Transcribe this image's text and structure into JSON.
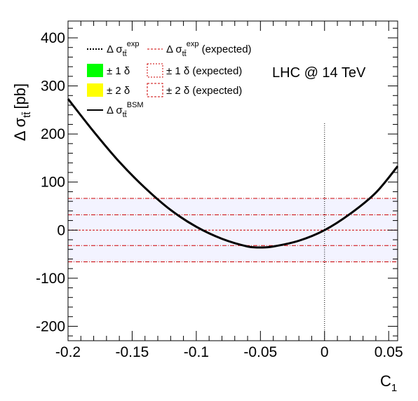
{
  "chart_data": {
    "type": "line",
    "xlim": [
      -0.2,
      0.057
    ],
    "ylim": [
      -230,
      435
    ],
    "x_ticks": [
      -0.2,
      -0.15,
      -0.1,
      -0.05,
      0,
      0.05
    ],
    "x_tick_labels": [
      "-0.2",
      "-0.15",
      "-0.1",
      "-0.05",
      "0",
      "0.05"
    ],
    "y_ticks": [
      -200,
      -100,
      0,
      100,
      200,
      300,
      400
    ],
    "y_tick_labels": [
      "-200",
      "-100",
      "0",
      "100",
      "200",
      "300",
      "400"
    ],
    "ylabel": {
      "main": "Δ σ",
      "sub": "tt̄",
      "unit": "[pb]"
    },
    "xlabel": {
      "main": "C",
      "sub": "1"
    },
    "annotation": "LHC @ 14 TeV",
    "colors": {
      "curve": "#000000",
      "expected": "#cc0000",
      "band1_fill": "#00ff00",
      "band2_fill": "#ffff00",
      "expected_band_fill": "#f3f3ff",
      "vline": "#000000"
    },
    "bsm_curve": {
      "name": "Δ σ tt̄ BSM",
      "x": [
        -0.2,
        -0.18,
        -0.16,
        -0.14,
        -0.12,
        -0.1,
        -0.08,
        -0.06,
        -0.05,
        -0.04,
        -0.02,
        0,
        0.02,
        0.04,
        0.057
      ],
      "y": [
        273,
        205,
        142,
        88,
        42,
        7,
        -18,
        -34,
        -36,
        -34,
        -22,
        0,
        34,
        78,
        133
      ]
    },
    "expected_lines": {
      "center": 0,
      "one_delta": [
        -32,
        32
      ],
      "two_delta": [
        -66,
        66
      ]
    },
    "vertical_line_x": 0,
    "vertical_line_top": 222,
    "legend": [
      {
        "style": "dotted-black",
        "label": "Δ σ",
        "sub": "tt̄",
        "sup": "exp"
      },
      {
        "style": "dashed-red",
        "label": "Δ σ",
        "sub": "tt̄",
        "sup": "exp",
        "suffix": " (expected)"
      },
      {
        "style": "fill-green",
        "label": "± 1 δ"
      },
      {
        "style": "box-red",
        "label": "± 1 δ (expected)"
      },
      {
        "style": "fill-yellow",
        "label": "± 2 δ"
      },
      {
        "style": "box-red",
        "label": "± 2 δ (expected)"
      },
      {
        "style": "solid-black",
        "label": "Δ σ",
        "sub": "tt̄",
        "sup": "BSM"
      }
    ]
  }
}
